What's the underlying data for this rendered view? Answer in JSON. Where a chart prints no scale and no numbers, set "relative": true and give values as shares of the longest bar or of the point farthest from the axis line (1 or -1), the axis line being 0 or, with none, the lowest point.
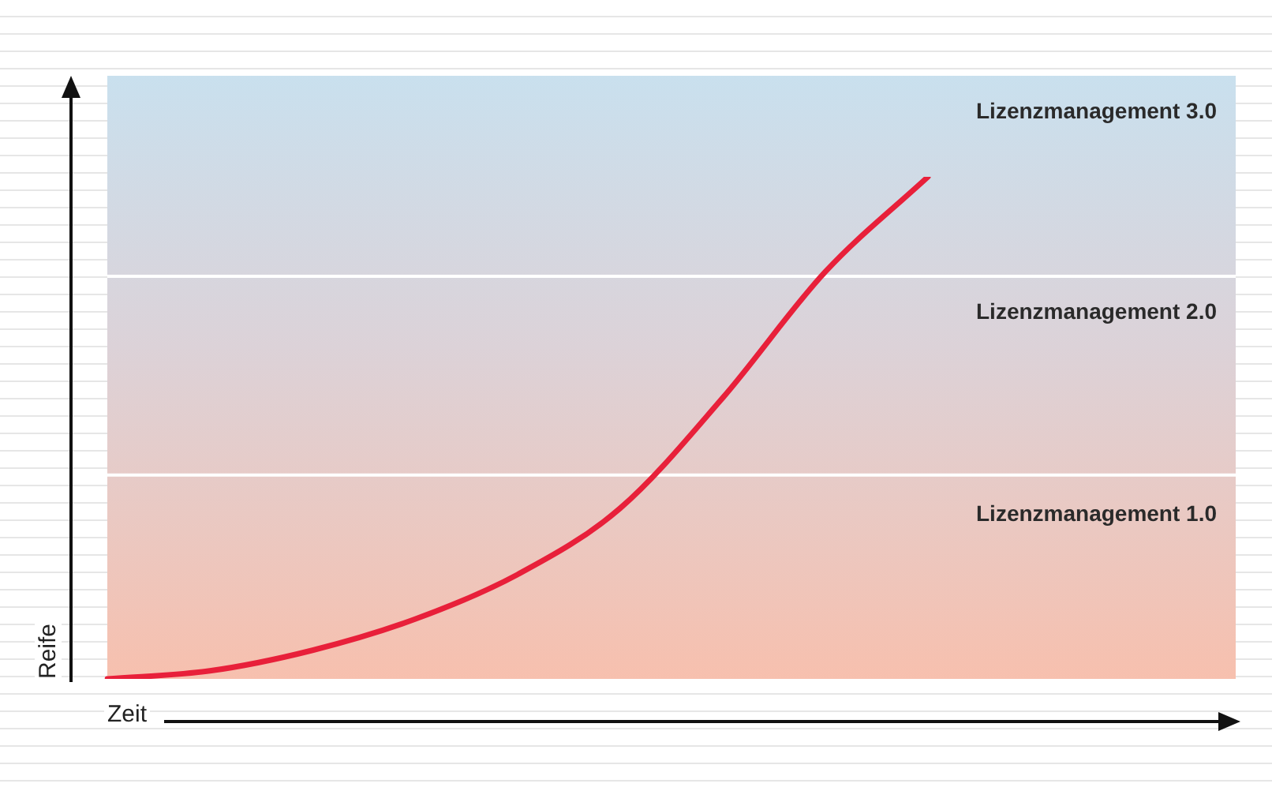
{
  "chart_data": {
    "type": "line",
    "relative": true,
    "xlabel": "Zeit",
    "ylabel": "Reife",
    "marker": "none",
    "legend": false,
    "categories": [
      null,
      null,
      null,
      null,
      null,
      null,
      null,
      null,
      null,
      null,
      null,
      null
    ],
    "series": [
      {
        "color": "#e8203a",
        "values": [
          0,
          0.016,
          0.057,
          0.119,
          0.208,
          0.34,
          0.56,
          0.811,
          1,
          null,
          null,
          null
        ]
      }
    ],
    "ref_lines": [
      {
        "axis": "y",
        "value": 0.406,
        "color": "#ffffff"
      },
      {
        "axis": "y",
        "value": 0.802,
        "color": "#ffffff"
      }
    ],
    "annotations": [
      "Lizenzmanagement 3.0",
      "Lizenzmanagement 2.0",
      "Lizenzmanagement 1.0"
    ]
  }
}
